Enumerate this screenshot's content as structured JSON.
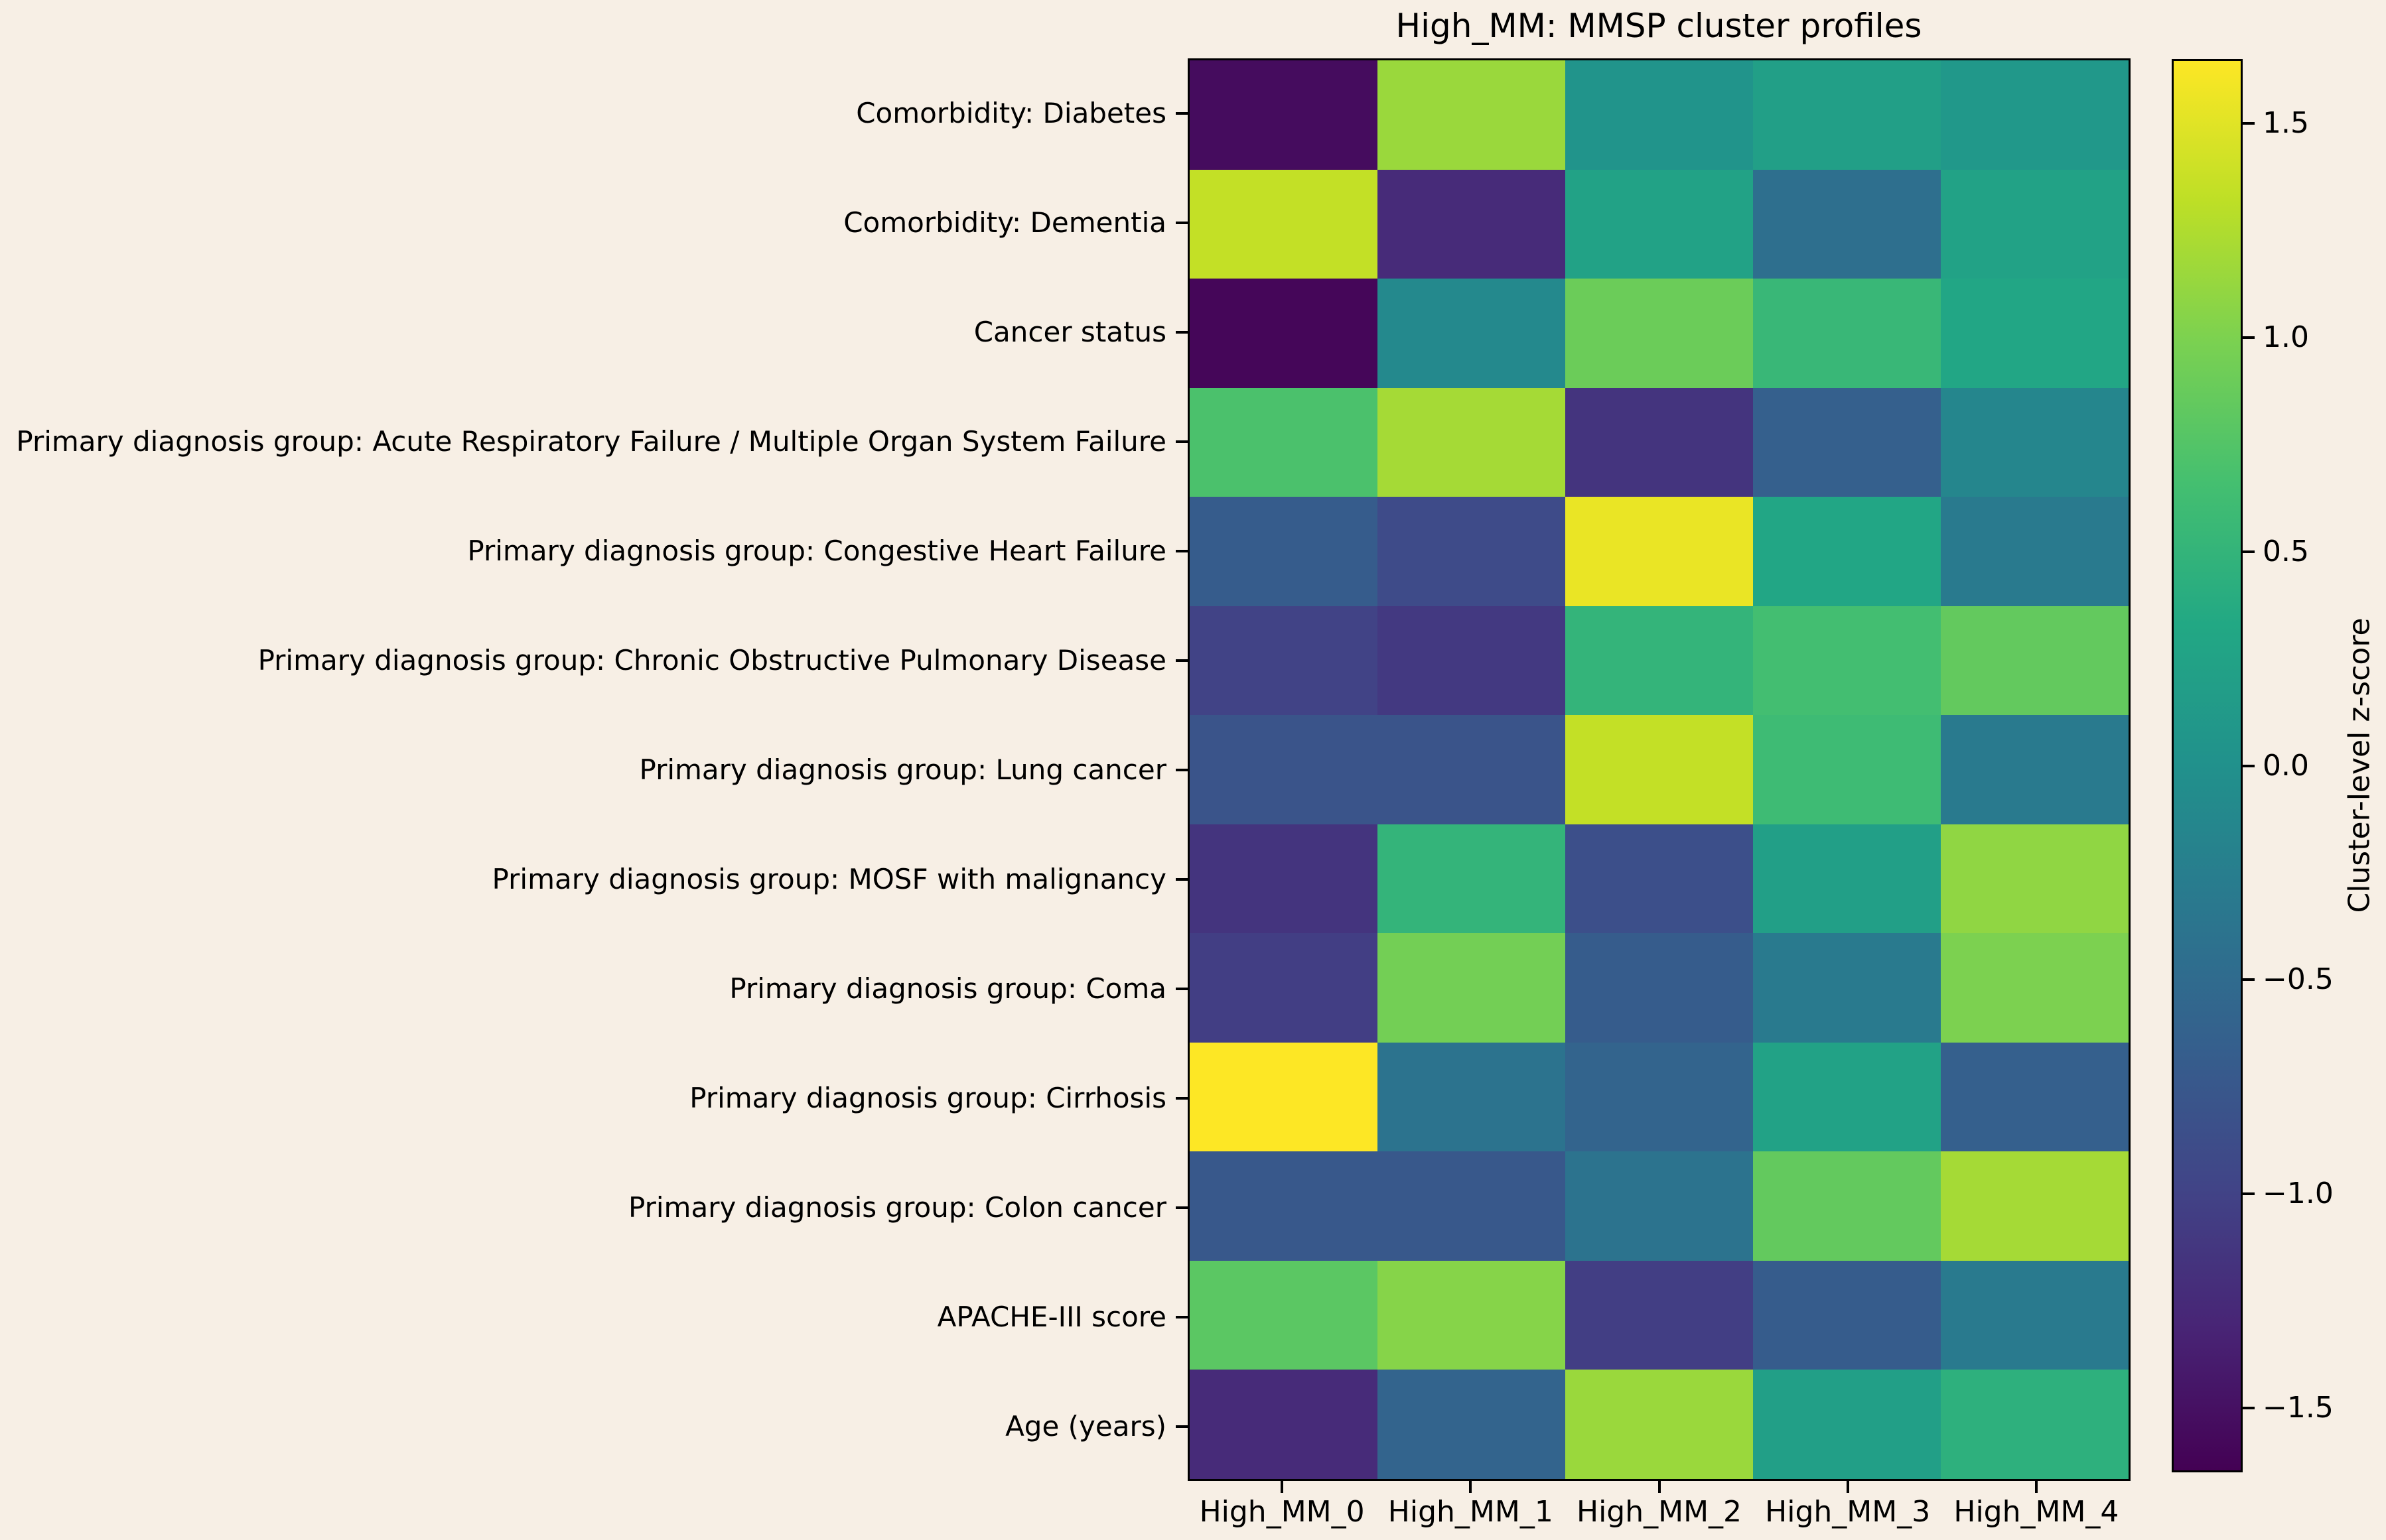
{
  "figure": {
    "background": "#f7efe5",
    "text_color": "#000000"
  },
  "chart_data": {
    "type": "heatmap",
    "title": "High_MM: MMSP cluster profiles",
    "colormap": "viridis",
    "colorbar_label": "Cluster-level z-score",
    "zlim": [
      -1.65,
      1.65
    ],
    "colorbar_tick_values": [
      1.5,
      1.0,
      0.5,
      0.0,
      -0.5,
      -1.0,
      -1.5
    ],
    "colorbar_tick_labels": [
      "1.5",
      "1.0",
      "0.5",
      "0.0",
      "−0.5",
      "−1.0",
      "−1.5"
    ],
    "columns": [
      "High_MM_0",
      "High_MM_1",
      "High_MM_2",
      "High_MM_3",
      "High_MM_4"
    ],
    "rows": [
      "Comorbidity: Diabetes",
      "Comorbidity: Dementia",
      "Cancer status",
      "Primary diagnosis group: Acute Respiratory Failure / Multiple Organ System Failure",
      "Primary diagnosis group: Congestive Heart Failure",
      "Primary diagnosis group: Chronic Obstructive Pulmonary Disease",
      "Primary diagnosis group: Lung cancer",
      "Primary diagnosis group: MOSF with malignancy",
      "Primary diagnosis group: Coma",
      "Primary diagnosis group: Cirrhosis",
      "Primary diagnosis group: Colon cancer",
      "APACHE-III score",
      "Age (years)"
    ],
    "values": [
      [
        -1.55,
        1.15,
        0.05,
        0.2,
        0.1
      ],
      [
        1.35,
        -1.25,
        0.25,
        -0.45,
        0.25
      ],
      [
        -1.6,
        -0.1,
        0.9,
        0.55,
        0.3
      ],
      [
        0.7,
        1.2,
        -1.15,
        -0.65,
        -0.15
      ],
      [
        -0.7,
        -0.9,
        1.55,
        0.3,
        -0.3
      ],
      [
        -1.0,
        -1.1,
        0.5,
        0.65,
        0.85
      ],
      [
        -0.8,
        -0.8,
        1.35,
        0.6,
        -0.3
      ],
      [
        -1.15,
        0.5,
        -0.85,
        0.2,
        1.1
      ],
      [
        -1.05,
        0.95,
        -0.7,
        -0.3,
        1.0
      ],
      [
        1.65,
        -0.4,
        -0.6,
        0.25,
        -0.65
      ],
      [
        -0.75,
        -0.75,
        -0.4,
        0.85,
        1.2
      ],
      [
        0.8,
        1.05,
        -1.05,
        -0.7,
        -0.3
      ],
      [
        -1.25,
        -0.6,
        1.15,
        0.2,
        0.45
      ]
    ]
  }
}
